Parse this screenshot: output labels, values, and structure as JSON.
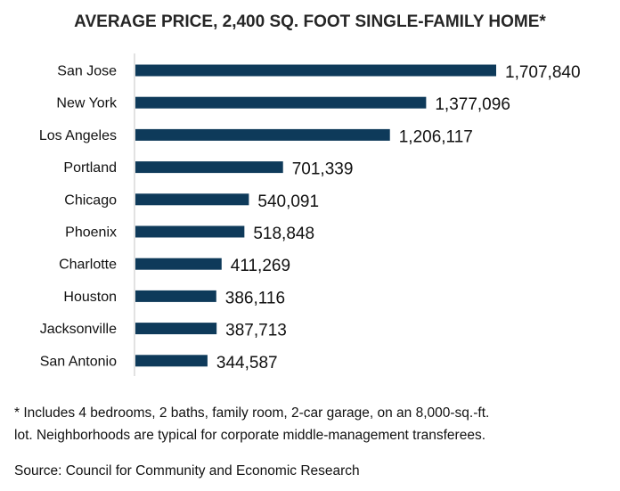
{
  "chart_data": {
    "type": "bar",
    "orientation": "horizontal",
    "title": "AVERAGE PRICE, 2,400 SQ. FOOT SINGLE-FAMILY HOME*",
    "categories": [
      "San Jose",
      "New York",
      "Los Angeles",
      "Portland",
      "Chicago",
      "Phoenix",
      "Charlotte",
      "Houston",
      "Jacksonville",
      "San Antonio"
    ],
    "values": [
      1707840,
      1377096,
      1206117,
      701339,
      540091,
      518848,
      411269,
      386116,
      387713,
      344587
    ],
    "value_labels": [
      "1,707,840",
      "1,377,096",
      "1,206,117",
      "701,339",
      "540,091",
      "518,848",
      "411,269",
      "386,116",
      "387,713",
      "344,587"
    ],
    "xlim": [
      0,
      1707840
    ],
    "grid": false,
    "bar_color": "#0e3a5a"
  },
  "footnote": {
    "line1": "* Includes 4 bedrooms, 2 baths, family room, 2-car garage, on an 8,000-sq.-ft.",
    "line2": "lot. Neighborhoods are typical for corporate middle-management transferees."
  },
  "source": "Source: Council for Community and Economic Research"
}
